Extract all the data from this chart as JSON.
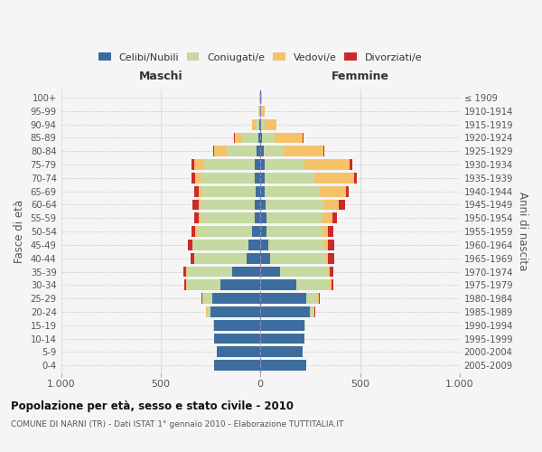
{
  "age_groups": [
    "0-4",
    "5-9",
    "10-14",
    "15-19",
    "20-24",
    "25-29",
    "30-34",
    "35-39",
    "40-44",
    "45-49",
    "50-54",
    "55-59",
    "60-64",
    "65-69",
    "70-74",
    "75-79",
    "80-84",
    "85-89",
    "90-94",
    "95-99",
    "100+"
  ],
  "birth_years": [
    "2005-2009",
    "2000-2004",
    "1995-1999",
    "1990-1994",
    "1985-1989",
    "1980-1984",
    "1975-1979",
    "1970-1974",
    "1965-1969",
    "1960-1964",
    "1955-1959",
    "1950-1954",
    "1945-1949",
    "1940-1944",
    "1935-1939",
    "1930-1934",
    "1925-1929",
    "1920-1924",
    "1915-1919",
    "1910-1914",
    "≤ 1909"
  ],
  "male_celibi": [
    230,
    220,
    230,
    230,
    250,
    240,
    200,
    140,
    70,
    60,
    40,
    30,
    30,
    25,
    30,
    30,
    20,
    10,
    5,
    3,
    2
  ],
  "male_coniugati": [
    0,
    0,
    0,
    5,
    20,
    50,
    170,
    230,
    260,
    280,
    280,
    270,
    270,
    270,
    270,
    250,
    150,
    80,
    20,
    5,
    2
  ],
  "male_vedovi": [
    0,
    0,
    0,
    0,
    1,
    2,
    2,
    2,
    2,
    3,
    5,
    8,
    10,
    15,
    25,
    50,
    60,
    40,
    15,
    2,
    0
  ],
  "male_divorziati": [
    0,
    0,
    0,
    1,
    2,
    5,
    10,
    15,
    20,
    20,
    20,
    25,
    30,
    20,
    20,
    15,
    5,
    2,
    0,
    0,
    0
  ],
  "female_nubili": [
    230,
    210,
    220,
    220,
    250,
    230,
    180,
    100,
    50,
    40,
    30,
    30,
    25,
    20,
    20,
    20,
    15,
    10,
    5,
    3,
    2
  ],
  "female_coniugate": [
    0,
    0,
    0,
    5,
    20,
    60,
    170,
    240,
    280,
    280,
    280,
    280,
    290,
    280,
    250,
    200,
    100,
    60,
    15,
    5,
    2
  ],
  "female_vedove": [
    0,
    0,
    0,
    1,
    2,
    3,
    5,
    8,
    10,
    20,
    30,
    50,
    80,
    130,
    200,
    230,
    200,
    140,
    60,
    15,
    3
  ],
  "female_divorziate": [
    0,
    0,
    0,
    1,
    2,
    5,
    10,
    20,
    30,
    30,
    25,
    25,
    30,
    15,
    15,
    10,
    5,
    5,
    2,
    0,
    0
  ],
  "colors": {
    "celibi": "#3d6d9e",
    "coniugati": "#c5d9a0",
    "vedovi": "#f5c26a",
    "divorziati": "#cc2a2a"
  },
  "legend_labels": [
    "Celibi/Nubili",
    "Coniugati/e",
    "Vedovi/e",
    "Divorziati/e"
  ],
  "title": "Popolazione per età, sesso e stato civile - 2010",
  "subtitle": "COMUNE DI NARNI (TR) - Dati ISTAT 1° gennaio 2010 - Elaborazione TUTTITALIA.IT",
  "label_maschi": "Maschi",
  "label_femmine": "Femmine",
  "ylabel_left": "Fasce di età",
  "ylabel_right": "Anni di nascita",
  "xlim": 1000,
  "bg_color": "#f5f5f5",
  "grid_color": "#dddddd",
  "bar_height": 0.8
}
